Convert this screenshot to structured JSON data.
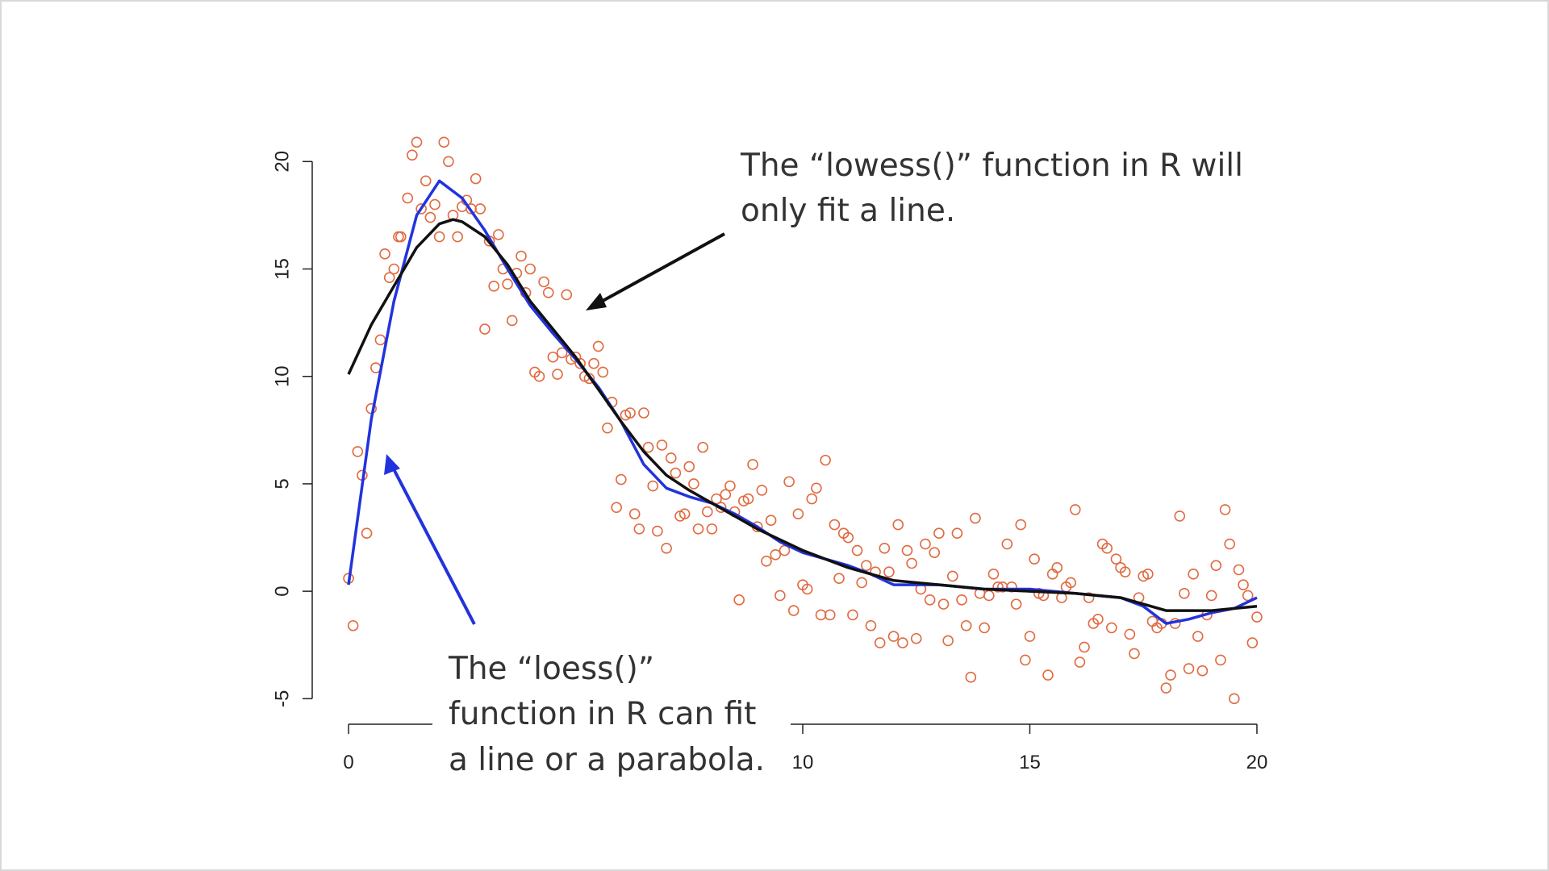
{
  "chart_data": {
    "type": "scatter",
    "xlim": [
      -0.8,
      20.8
    ],
    "ylim": [
      -5.4,
      21.4
    ],
    "xticks": [
      0,
      10,
      15,
      20
    ],
    "yticks": [
      -5,
      0,
      5,
      10,
      15,
      20
    ],
    "series": [
      {
        "mode": "markers",
        "color": "#e06a40",
        "x": [
          0.0,
          0.1,
          0.2,
          0.3,
          0.4,
          0.5,
          0.6,
          0.7,
          0.8,
          0.9,
          1.0,
          1.1,
          1.15,
          1.3,
          1.4,
          1.5,
          1.6,
          1.7,
          1.8,
          1.9,
          2.0,
          2.1,
          2.2,
          2.3,
          2.4,
          2.5,
          2.6,
          2.7,
          2.8,
          2.9,
          3.0,
          3.1,
          3.2,
          3.3,
          3.4,
          3.5,
          3.6,
          3.7,
          3.8,
          3.9,
          4.0,
          4.1,
          4.2,
          4.3,
          4.4,
          4.5,
          4.6,
          4.7,
          4.8,
          4.9,
          5.0,
          5.1,
          5.2,
          5.3,
          5.4,
          5.5,
          5.6,
          5.7,
          5.8,
          5.9,
          6.0,
          6.1,
          6.2,
          6.3,
          6.4,
          6.5,
          6.6,
          6.7,
          6.8,
          6.9,
          7.0,
          7.1,
          7.2,
          7.3,
          7.4,
          7.5,
          7.6,
          7.7,
          7.8,
          7.9,
          8.0,
          8.1,
          8.2,
          8.3,
          8.4,
          8.5,
          8.6,
          8.7,
          8.8,
          8.9,
          9.0,
          9.1,
          9.2,
          9.3,
          9.4,
          9.5,
          9.6,
          9.7,
          9.8,
          9.9,
          10.0,
          10.1,
          10.2,
          10.3,
          10.4,
          10.5,
          10.6,
          10.7,
          10.8,
          10.9,
          11.0,
          11.1,
          11.2,
          11.3,
          11.4,
          11.5,
          11.6,
          11.7,
          11.8,
          11.9,
          12.0,
          12.1,
          12.2,
          12.3,
          12.4,
          12.5,
          12.6,
          12.7,
          12.8,
          12.9,
          13.0,
          13.1,
          13.2,
          13.3,
          13.4,
          13.5,
          13.6,
          13.7,
          13.8,
          13.9,
          14.0,
          14.1,
          14.2,
          14.3,
          14.4,
          14.5,
          14.6,
          14.7,
          14.8,
          14.9,
          15.0,
          15.1,
          15.2,
          15.3,
          15.4,
          15.5,
          15.6,
          15.7,
          15.8,
          15.9,
          16.0,
          16.1,
          16.2,
          16.3,
          16.4,
          16.5,
          16.6,
          16.7,
          16.8,
          16.9,
          17.0,
          17.1,
          17.2,
          17.3,
          17.4,
          17.5,
          17.6,
          17.7,
          17.8,
          17.9,
          18.0,
          18.1,
          18.2,
          18.3,
          18.4,
          18.5,
          18.6,
          18.7,
          18.8,
          18.9,
          19.0,
          19.1,
          19.2,
          19.3,
          19.4,
          19.5,
          19.6,
          19.7,
          19.8,
          19.9,
          20.0
        ],
        "values": [
          0.6,
          -1.6,
          6.5,
          5.4,
          2.7,
          8.5,
          10.4,
          11.7,
          15.7,
          14.6,
          15.0,
          16.5,
          16.5,
          18.3,
          20.3,
          20.9,
          17.8,
          19.1,
          17.4,
          18.0,
          16.5,
          20.9,
          20.0,
          17.5,
          16.5,
          17.9,
          18.2,
          17.8,
          19.2,
          17.8,
          12.2,
          16.3,
          14.2,
          16.6,
          15.0,
          14.3,
          12.6,
          14.8,
          15.6,
          13.9,
          15.0,
          10.2,
          10.0,
          14.4,
          13.9,
          10.9,
          10.1,
          11.1,
          13.8,
          10.8,
          10.9,
          10.6,
          10.0,
          9.9,
          10.6,
          11.4,
          10.2,
          7.6,
          8.8,
          3.9,
          5.2,
          8.2,
          8.3,
          3.6,
          2.9,
          8.3,
          6.7,
          4.9,
          2.8,
          6.8,
          2.0,
          6.2,
          5.5,
          3.5,
          3.6,
          5.8,
          5.0,
          2.9,
          6.7,
          3.7,
          2.9,
          4.3,
          3.9,
          4.5,
          4.9,
          3.7,
          -0.4,
          4.2,
          4.3,
          5.9,
          3.0,
          4.7,
          1.4,
          3.3,
          1.7,
          -0.2,
          1.9,
          5.1,
          -0.9,
          3.6,
          0.3,
          0.1,
          4.3,
          4.8,
          -1.1,
          6.1,
          -1.1,
          3.1,
          0.6,
          2.7,
          2.5,
          -1.1,
          1.9,
          0.4,
          1.2,
          -1.6,
          0.9,
          -2.4,
          2.0,
          0.9,
          -2.1,
          3.1,
          -2.4,
          1.9,
          1.3,
          -2.2,
          0.1,
          2.2,
          -0.4,
          1.8,
          2.7,
          -0.6,
          -2.3,
          0.7,
          2.7,
          -0.4,
          -1.6,
          -4.0,
          3.4,
          -0.1,
          -1.7,
          -0.2,
          0.8,
          0.2,
          0.2,
          2.2,
          0.2,
          -0.6,
          3.1,
          -3.2,
          -2.1,
          1.5,
          -0.1,
          -0.2,
          -3.9,
          0.8,
          1.1,
          -0.3,
          0.2,
          0.4,
          3.8,
          -3.3,
          -2.6,
          -0.3,
          -1.5,
          -1.3,
          2.2,
          2.0,
          -1.7,
          1.5,
          1.1,
          0.9,
          -2.0,
          -2.9,
          -0.3,
          0.7,
          0.8,
          -1.4,
          -1.7,
          -1.5,
          -4.5,
          -3.9,
          -1.5,
          3.5,
          -0.1,
          -3.6,
          0.8,
          -2.1,
          -3.7,
          -1.1,
          -0.2,
          1.2,
          -3.2,
          3.8,
          2.2,
          -5.0,
          1.0,
          0.3,
          -0.2,
          -2.4,
          -1.2
        ]
      },
      {
        "mode": "line",
        "color": "#2233dd",
        "x": [
          0,
          0.5,
          1.0,
          1.5,
          2.0,
          2.5,
          3.0,
          3.5,
          4.0,
          4.5,
          5.0,
          5.5,
          6.0,
          6.5,
          7.0,
          7.5,
          8.0,
          8.5,
          9.0,
          9.5,
          10.0,
          10.5,
          11.0,
          11.5,
          12.0,
          12.5,
          13.0,
          13.5,
          14.0,
          14.5,
          15.0,
          15.5,
          16.0,
          16.5,
          17.0,
          17.5,
          18.0,
          18.5,
          19.0,
          19.5,
          20.0
        ],
        "values": [
          0.3,
          8.0,
          13.5,
          17.5,
          19.1,
          18.3,
          16.8,
          15.0,
          13.3,
          12.0,
          10.8,
          9.5,
          7.9,
          5.9,
          4.8,
          4.4,
          4.1,
          3.6,
          3.0,
          2.3,
          1.8,
          1.5,
          1.2,
          0.8,
          0.3,
          0.3,
          0.3,
          0.2,
          0.1,
          0.1,
          0.1,
          0.0,
          -0.1,
          -0.2,
          -0.3,
          -0.7,
          -1.5,
          -1.3,
          -1.0,
          -0.8,
          -0.3
        ]
      },
      {
        "mode": "line",
        "color": "#111111",
        "x": [
          0,
          0.5,
          1.0,
          1.5,
          2.0,
          2.3,
          2.5,
          3.0,
          3.5,
          4.0,
          4.5,
          5.0,
          5.5,
          6.0,
          6.5,
          7.0,
          7.5,
          8.0,
          8.5,
          9.0,
          9.5,
          10.0,
          10.5,
          11.0,
          11.5,
          12.0,
          13.0,
          14.0,
          15.0,
          16.0,
          17.0,
          18.0,
          19.0,
          20.0
        ],
        "values": [
          10.1,
          12.4,
          14.2,
          16.0,
          17.1,
          17.3,
          17.2,
          16.5,
          15.2,
          13.5,
          12.2,
          10.9,
          9.4,
          7.9,
          6.5,
          5.4,
          4.7,
          4.1,
          3.5,
          2.9,
          2.4,
          1.9,
          1.5,
          1.1,
          0.8,
          0.5,
          0.3,
          0.1,
          0.0,
          -0.1,
          -0.3,
          -0.9,
          -0.9,
          -0.7
        ]
      }
    ],
    "annotations": [
      {
        "lines": [
          "The “lowess()” function in R will",
          "only fit a line."
        ]
      },
      {
        "lines": [
          "The “loess()”",
          "function in R can fit",
          "a line or a parabola."
        ]
      }
    ]
  }
}
